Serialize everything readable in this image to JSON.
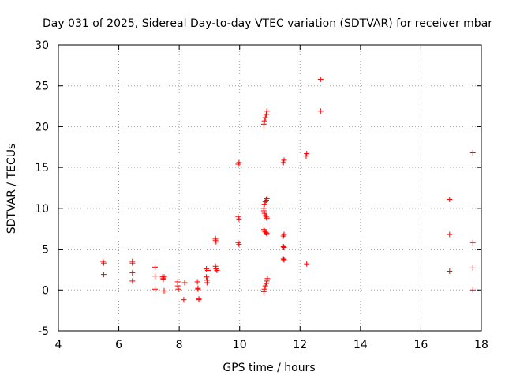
{
  "chart_data": {
    "type": "scatter",
    "title": "Day 031 of 2025, Sidereal Day-to-day VTEC variation (SDTVAR) for receiver mbar",
    "xlabel": "GPS time / hours",
    "ylabel": "SDTVAR / TECUs",
    "xlim": [
      4,
      18
    ],
    "ylim": [
      -5,
      30
    ],
    "xticks": [
      4,
      6,
      8,
      10,
      12,
      14,
      16,
      18
    ],
    "yticks": [
      -5,
      0,
      5,
      10,
      15,
      20,
      25,
      30
    ],
    "xtick_labels": [
      "4",
      "6",
      "8",
      "10",
      "12",
      "14",
      "16",
      "18"
    ],
    "ytick_labels": [
      "-5",
      "0",
      "5",
      "10",
      "15",
      "20",
      "25",
      "30"
    ],
    "grid": true,
    "marker": "+",
    "marker_color": "#ff0000",
    "series": [
      {
        "name": "SDTVAR",
        "points": [
          [
            5.48,
            3.5
          ],
          [
            5.5,
            3.3
          ],
          [
            5.5,
            1.9
          ],
          [
            6.45,
            3.5
          ],
          [
            6.45,
            3.3
          ],
          [
            6.45,
            2.1
          ],
          [
            6.45,
            1.1
          ],
          [
            7.2,
            2.8
          ],
          [
            7.2,
            1.7
          ],
          [
            7.2,
            0.1
          ],
          [
            7.45,
            1.6
          ],
          [
            7.47,
            1.4
          ],
          [
            7.47,
            1.3
          ],
          [
            7.5,
            1.6
          ],
          [
            7.5,
            -0.1
          ],
          [
            7.95,
            1.0
          ],
          [
            7.95,
            0.5
          ],
          [
            7.97,
            0.1
          ],
          [
            8.15,
            -1.2
          ],
          [
            8.18,
            0.9
          ],
          [
            8.6,
            1.0
          ],
          [
            8.62,
            0.2
          ],
          [
            8.62,
            0.1
          ],
          [
            8.65,
            -1.1
          ],
          [
            8.65,
            -1.2
          ],
          [
            8.9,
            2.6
          ],
          [
            8.9,
            1.6
          ],
          [
            8.92,
            1.2
          ],
          [
            8.92,
            0.9
          ],
          [
            8.95,
            2.4
          ],
          [
            9.2,
            6.3
          ],
          [
            9.2,
            6.1
          ],
          [
            9.22,
            5.9
          ],
          [
            9.2,
            2.9
          ],
          [
            9.22,
            2.6
          ],
          [
            9.25,
            2.4
          ],
          [
            9.95,
            15.4
          ],
          [
            9.98,
            15.6
          ],
          [
            9.95,
            9.0
          ],
          [
            9.98,
            8.7
          ],
          [
            9.95,
            5.8
          ],
          [
            9.98,
            5.6
          ],
          [
            10.8,
            20.3
          ],
          [
            10.82,
            20.7
          ],
          [
            10.85,
            21.1
          ],
          [
            10.88,
            21.5
          ],
          [
            10.9,
            21.9
          ],
          [
            10.8,
            10.0
          ],
          [
            10.82,
            10.5
          ],
          [
            10.85,
            10.8
          ],
          [
            10.88,
            11.0
          ],
          [
            10.9,
            11.2
          ],
          [
            10.8,
            9.7
          ],
          [
            10.82,
            9.4
          ],
          [
            10.85,
            9.1
          ],
          [
            10.88,
            9.0
          ],
          [
            10.9,
            8.8
          ],
          [
            10.8,
            7.4
          ],
          [
            10.82,
            7.2
          ],
          [
            10.85,
            7.1
          ],
          [
            10.88,
            7.0
          ],
          [
            10.9,
            6.9
          ],
          [
            10.8,
            -0.2
          ],
          [
            10.82,
            0.1
          ],
          [
            10.85,
            0.5
          ],
          [
            10.88,
            0.8
          ],
          [
            10.9,
            1.1
          ],
          [
            10.92,
            1.4
          ],
          [
            11.45,
            15.6
          ],
          [
            11.47,
            15.9
          ],
          [
            11.45,
            6.6
          ],
          [
            11.47,
            6.8
          ],
          [
            11.45,
            5.3
          ],
          [
            11.47,
            5.2
          ],
          [
            11.45,
            3.8
          ],
          [
            11.47,
            3.7
          ],
          [
            12.2,
            16.4
          ],
          [
            12.22,
            16.7
          ],
          [
            12.22,
            3.2
          ],
          [
            12.68,
            25.8
          ],
          [
            12.68,
            21.9
          ],
          [
            16.95,
            11.1
          ],
          [
            16.95,
            6.8
          ],
          [
            16.95,
            2.3
          ],
          [
            17.72,
            16.8
          ],
          [
            17.72,
            5.8
          ],
          [
            17.72,
            2.7
          ],
          [
            17.72,
            0.0
          ]
        ]
      }
    ]
  }
}
